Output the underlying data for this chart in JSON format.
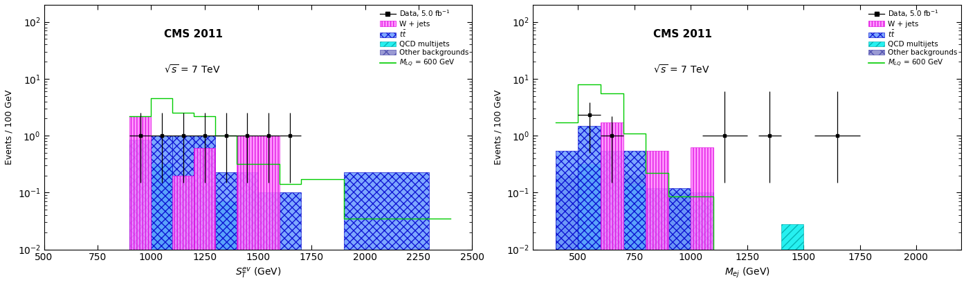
{
  "plot1": {
    "title_line1": "CMS 2011",
    "title_line2": "$\\sqrt{s}$ = 7 TeV",
    "xlabel": "$S_T^{ev}$ (GeV)",
    "ylabel": "Events / 100 GeV",
    "xlim": [
      500,
      2500
    ],
    "ylim": [
      0.01,
      200
    ],
    "bin_edges": [
      900,
      1000,
      1100,
      1200,
      1300,
      1400,
      1500,
      1600,
      1700,
      1900,
      2300,
      2400
    ],
    "w_jets": [
      2.2,
      0.0,
      0.2,
      0.6,
      0.0,
      1.0,
      1.0,
      0.0,
      0.0,
      0.0,
      0.0
    ],
    "ttbar": [
      0.85,
      1.0,
      1.0,
      1.0,
      0.23,
      0.23,
      0.1,
      0.1,
      0.0,
      0.23,
      0.0
    ],
    "qcd": [
      0.7,
      0.32,
      0.17,
      0.1,
      0.07,
      0.1,
      0.1,
      0.0,
      0.0,
      0.0,
      0.0
    ],
    "other_bkg": [
      0.2,
      0.2,
      0.13,
      0.13,
      0.06,
      0.1,
      0.0,
      0.0,
      0.0,
      0.0,
      0.0
    ],
    "signal": [
      2.2,
      4.5,
      2.5,
      2.2,
      1.0,
      0.32,
      0.32,
      0.14,
      0.17,
      0.035,
      0.035
    ],
    "data_x": [
      950,
      1050,
      1150,
      1250,
      1350,
      1450,
      1550,
      1650
    ],
    "data_y": [
      1.0,
      1.0,
      1.0,
      1.0,
      1.0,
      1.0,
      1.0,
      1.0
    ],
    "data_xerr": [
      50,
      50,
      50,
      50,
      50,
      50,
      50,
      50
    ],
    "data_yerr_lo": [
      0.85,
      0.85,
      0.85,
      0.85,
      0.85,
      0.85,
      0.85,
      0.85
    ],
    "data_yerr_hi": [
      1.5,
      1.5,
      1.5,
      1.5,
      1.5,
      1.5,
      1.5,
      1.5
    ]
  },
  "plot2": {
    "title_line1": "CMS 2011",
    "title_line2": "$\\sqrt{s}$ = 7 TeV",
    "xlabel": "$M_{ej}$ (GeV)",
    "ylabel": "Events / 100 GeV",
    "xlim": [
      300,
      2200
    ],
    "ylim": [
      0.01,
      200
    ],
    "bin_edges": [
      400,
      500,
      600,
      700,
      800,
      900,
      1000,
      1100,
      1300,
      1400,
      1500,
      1700
    ],
    "w_jets": [
      0.0,
      0.0,
      1.7,
      0.0,
      0.55,
      0.0,
      0.62,
      0.0,
      0.0,
      0.0,
      0.0
    ],
    "ttbar": [
      0.55,
      1.5,
      0.55,
      0.55,
      0.12,
      0.12,
      0.1,
      0.0,
      0.0,
      0.0,
      0.0
    ],
    "qcd": [
      0.0,
      0.32,
      0.0,
      0.14,
      0.0,
      0.0,
      0.06,
      0.0,
      0.0,
      0.028,
      0.0
    ],
    "other_bkg": [
      0.2,
      0.2,
      0.2,
      0.2,
      0.1,
      0.1,
      0.0,
      0.0,
      0.0,
      0.0,
      0.0
    ],
    "signal": [
      1.7,
      8.0,
      5.5,
      1.1,
      0.22,
      0.085,
      0.085,
      0.0,
      0.0,
      0.0,
      0.0
    ],
    "data_x": [
      550,
      650,
      1150,
      1350,
      1650
    ],
    "data_y": [
      2.3,
      1.0,
      1.0,
      1.0,
      1.0
    ],
    "data_xerr": [
      50,
      50,
      100,
      50,
      100
    ],
    "data_yerr_lo": [
      1.8,
      0.85,
      0.85,
      0.85,
      0.85
    ],
    "data_yerr_hi": [
      1.5,
      1.2,
      5.0,
      5.0,
      5.0
    ]
  },
  "legend": {
    "data_label": "Data, 5.0 fb$^{-1}$",
    "wjets_label": "W + jets",
    "ttbar_label": "$t\\bar{t}$",
    "qcd_label": "QCD multijets",
    "other_label": "Other backgrounds",
    "signal_label": "$M_{LQ}$ = 600 GeV"
  },
  "colors": {
    "data": "#000000",
    "w_jets": "#ff00ff",
    "ttbar": "#0000bb",
    "qcd": "#00ffff",
    "other_bkg": "#7777cc",
    "signal": "#00cc00"
  }
}
